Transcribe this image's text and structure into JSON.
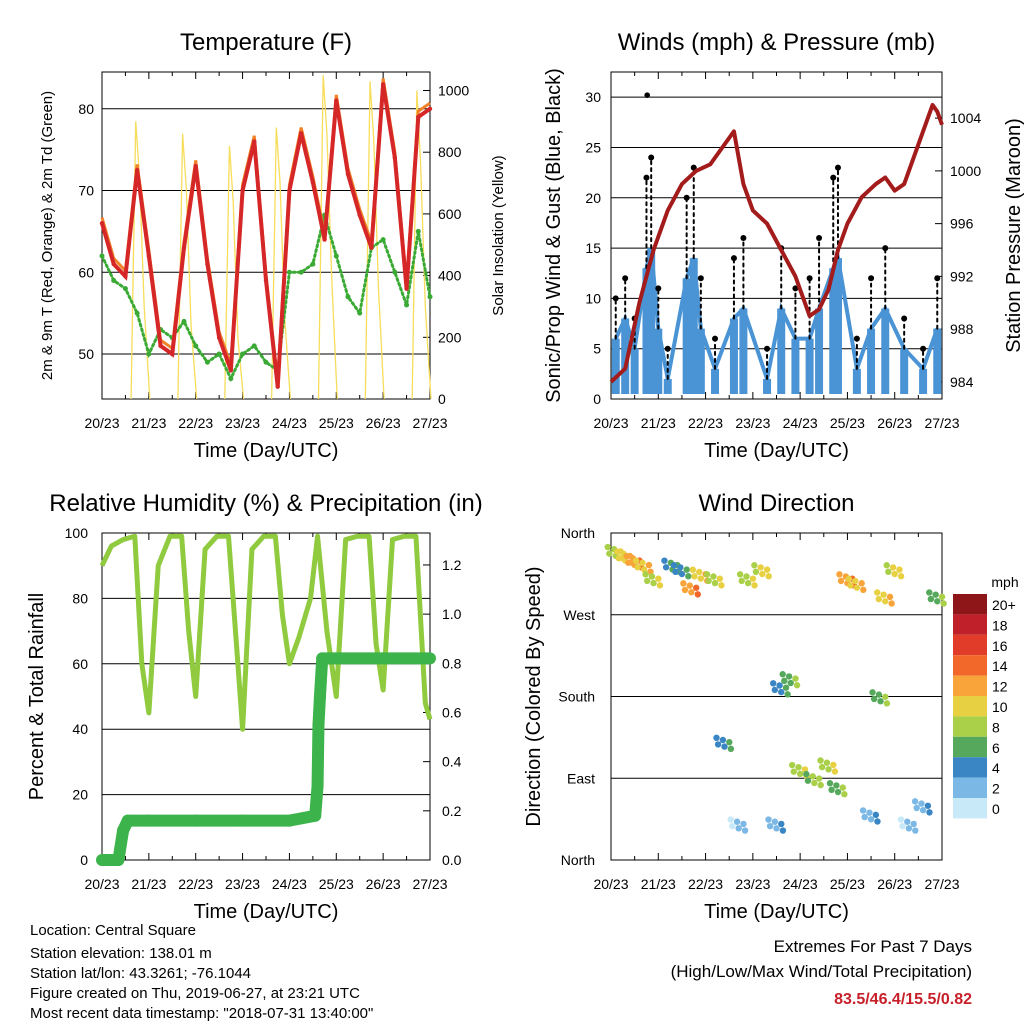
{
  "colors": {
    "t2m": "#d62728",
    "t9m": "#f0822a",
    "td": "#3aaa35",
    "solar": "#f7dd5a",
    "wind": "#4a94d6",
    "gust": "#000000",
    "pressure": "#a31b1b",
    "rh": "#8fca3f",
    "rain": "#3cb44b"
  },
  "info": {
    "location": "Location: Central Square",
    "elevation": "Station elevation: 138.01 m",
    "latlon": "Station lat/lon: 43.3261; -76.1044",
    "created": "Figure created on Thu, 2019-06-27, at 23:21 UTC",
    "recent": "Most recent data timestamp: \"2018-07-31 13:40:00\""
  },
  "extremes": {
    "heading": "Extremes For Past 7 Days",
    "subheading": "(High/Low/Max Wind/Total Precipitation)",
    "values": "83.5/46.4/15.5/0.82"
  },
  "chart_data": [
    {
      "type": "line",
      "title": "Temperature (F)",
      "xlabel": "Time (Day/UTC)",
      "ylabel": "2m & 9m T (Red, Orange) & 2m Td (Green)",
      "ylabel_right": "Solar Insolation (Yellow)",
      "x_ticks": [
        "20/23",
        "21/23",
        "22/23",
        "23/23",
        "24/23",
        "25/23",
        "26/23",
        "27/23"
      ],
      "ylim": [
        44.5,
        84.5
      ],
      "y_ticks": [
        50,
        60,
        70,
        80
      ],
      "ylim_right": [
        0,
        1060
      ],
      "y_ticks_right": [
        0,
        200,
        400,
        600,
        800,
        1000
      ],
      "grid": true,
      "series": [
        {
          "name": "2m T",
          "x": [
            0,
            0.25,
            0.5,
            0.75,
            1,
            1.25,
            1.5,
            1.75,
            2,
            2.25,
            2.5,
            2.75,
            3,
            3.25,
            3.5,
            3.75,
            4,
            4.25,
            4.5,
            4.75,
            5,
            5.25,
            5.5,
            5.75,
            6,
            6.25,
            6.5,
            6.75,
            7
          ],
          "values": [
            66,
            61,
            59.5,
            72.5,
            62,
            51,
            50,
            63,
            73,
            61,
            52,
            48,
            70,
            76,
            59,
            46,
            70,
            77,
            71,
            64,
            81,
            72,
            67,
            63,
            83,
            74,
            58,
            79,
            80
          ]
        },
        {
          "name": "2m Td",
          "x": [
            0,
            0.25,
            0.5,
            0.75,
            1,
            1.25,
            1.5,
            1.75,
            2,
            2.25,
            2.5,
            2.75,
            3,
            3.25,
            3.5,
            3.75,
            4,
            4.25,
            4.5,
            4.75,
            5,
            5.25,
            5.5,
            5.75,
            6,
            6.25,
            6.5,
            6.75,
            7
          ],
          "values": [
            62,
            59,
            58,
            55,
            50,
            53,
            52,
            54,
            51,
            49,
            50,
            47,
            50,
            51,
            49,
            48,
            60,
            60,
            61,
            67,
            62,
            57,
            55,
            63,
            64,
            60,
            56,
            65,
            57
          ]
        },
        {
          "name": "Solar Insolation",
          "x": [
            0.72,
            0.8,
            0.9,
            1.72,
            1.8,
            1.9,
            2.72,
            2.8,
            2.9,
            3.72,
            3.8,
            3.9,
            4.72,
            4.8,
            4.9,
            5.72,
            5.8,
            5.9,
            6.72,
            6.8,
            6.9
          ],
          "values": [
            900,
            720,
            300,
            860,
            680,
            240,
            820,
            640,
            200,
            880,
            700,
            260,
            1050,
            860,
            400,
            1030,
            840,
            360,
            1000,
            760,
            300
          ]
        }
      ]
    },
    {
      "type": "scatter",
      "title": "Winds (mph) & Pressure (mb)",
      "xlabel": "Time (Day/UTC)",
      "ylabel": "Sonic/Prop Wind & Gust (Blue, Black)",
      "ylabel_right": "Station Pressure (Maroon)",
      "x_ticks": [
        "20/23",
        "21/23",
        "22/23",
        "23/23",
        "24/23",
        "25/23",
        "26/23",
        "27/23"
      ],
      "ylim": [
        0,
        32.5
      ],
      "y_ticks": [
        0,
        5,
        10,
        15,
        20,
        25,
        30
      ],
      "ylim_right": [
        982.7,
        1007.5
      ],
      "y_ticks_right": [
        984,
        988,
        992,
        996,
        1000,
        1004
      ],
      "grid": true,
      "series": [
        {
          "name": "Gust",
          "x": [
            0.1,
            0.3,
            0.5,
            0.75,
            0.85,
            1,
            1.2,
            1.6,
            1.75,
            1.9,
            2.2,
            2.6,
            2.8,
            3.3,
            3.6,
            3.9,
            4.2,
            4.4,
            4.7,
            4.8,
            5.2,
            5.5,
            5.8,
            6.2,
            6.6,
            6.9
          ],
          "values": [
            10,
            12,
            8,
            22,
            24,
            11,
            5,
            20,
            23,
            12,
            6,
            14,
            16,
            5,
            15,
            11,
            12,
            16,
            22,
            23,
            6,
            12,
            15,
            8,
            5,
            12
          ]
        },
        {
          "name": "Wind",
          "x": [
            0.1,
            0.3,
            0.5,
            0.75,
            0.85,
            1,
            1.2,
            1.6,
            1.75,
            1.9,
            2.2,
            2.6,
            2.8,
            3.3,
            3.6,
            3.9,
            4.2,
            4.4,
            4.7,
            4.8,
            5.2,
            5.5,
            5.8,
            6.2,
            6.6,
            6.9
          ],
          "values": [
            6,
            8,
            5,
            13,
            15,
            7,
            2,
            12,
            14,
            7,
            3,
            8,
            9,
            2,
            9,
            6,
            6,
            9,
            13,
            14,
            3,
            7,
            9,
            5,
            3,
            7
          ]
        },
        {
          "name": "Station Pressure",
          "x": [
            0,
            0.3,
            0.6,
            0.9,
            1.2,
            1.5,
            1.8,
            2.1,
            2.4,
            2.6,
            2.8,
            3,
            3.3,
            3.6,
            3.9,
            4.2,
            4.4,
            4.6,
            4.8,
            5,
            5.3,
            5.6,
            5.8,
            6,
            6.2,
            6.4,
            6.6,
            6.8,
            6.9,
            7
          ],
          "values": [
            984,
            985,
            990,
            994,
            997,
            999,
            1000,
            1000.5,
            1002,
            1003,
            999,
            997,
            996,
            994,
            992,
            989,
            989.5,
            991,
            994,
            996,
            998,
            999,
            999.5,
            998.5,
            999,
            1001,
            1003,
            1005,
            1004.5,
            1003.5
          ]
        }
      ]
    },
    {
      "type": "line",
      "title": "Relative Humidity (%) & Precipitation (in)",
      "xlabel": "Time (Day/UTC)",
      "ylabel": "Percent & Total Rainfall",
      "x_ticks": [
        "20/23",
        "21/23",
        "22/23",
        "23/23",
        "24/23",
        "25/23",
        "26/23",
        "27/23"
      ],
      "ylim": [
        0,
        100
      ],
      "y_ticks": [
        0,
        20,
        40,
        60,
        80,
        100
      ],
      "ylim_right": [
        0,
        1.33
      ],
      "y_ticks_right": [
        "0.0",
        "0.2",
        "0.4",
        "0.6",
        "0.8",
        "1.0",
        "1.2"
      ],
      "grid": true,
      "series": [
        {
          "name": "Relative Humidity",
          "x": [
            0,
            0.2,
            0.45,
            0.7,
            0.85,
            1,
            1.2,
            1.45,
            1.7,
            1.85,
            2,
            2.2,
            2.45,
            2.7,
            2.9,
            3,
            3.2,
            3.45,
            3.7,
            3.85,
            4,
            4.2,
            4.45,
            4.6,
            4.8,
            5,
            5.2,
            5.45,
            5.7,
            5.85,
            6,
            6.2,
            6.45,
            6.7,
            6.9,
            7
          ],
          "values": [
            90,
            96,
            98,
            99,
            60,
            45,
            90,
            99,
            99,
            70,
            50,
            95,
            99,
            99,
            60,
            40,
            95,
            99,
            99,
            75,
            60,
            68,
            80,
            99,
            70,
            50,
            98,
            99,
            99,
            66,
            52,
            98,
            99,
            99,
            48,
            43
          ]
        },
        {
          "name": "Total Precipitation",
          "x": [
            0,
            0.35,
            0.45,
            0.55,
            1,
            2,
            3,
            4,
            4.55,
            4.6,
            4.62,
            4.65,
            4.7,
            5,
            6,
            7
          ],
          "values": [
            0,
            0,
            0.12,
            0.16,
            0.16,
            0.16,
            0.16,
            0.16,
            0.18,
            0.3,
            0.55,
            0.66,
            0.82,
            0.82,
            0.82,
            0.82
          ]
        }
      ]
    },
    {
      "type": "scatter",
      "title": "Wind Direction",
      "xlabel": "Time (Day/UTC)",
      "ylabel": "Direction (Colored By Speed)",
      "x_ticks": [
        "20/23",
        "21/23",
        "22/23",
        "23/23",
        "24/23",
        "25/23",
        "26/23",
        "27/23"
      ],
      "y_ticks": [
        "North",
        "West",
        "South",
        "East",
        "North"
      ],
      "ylim": [
        0,
        360
      ],
      "grid": true,
      "legend_title": "mph",
      "legend_labels": [
        "20+",
        "18",
        "16",
        "14",
        "12",
        "10",
        "8",
        "6",
        "4",
        "2",
        "0"
      ],
      "legend_colors": [
        "#8e1518",
        "#c0202a",
        "#e13b2a",
        "#f2682b",
        "#f8a43b",
        "#e8d043",
        "#aad04a",
        "#55a85c",
        "#3a85c4",
        "#7bb8e5",
        "#c8e9f8"
      ],
      "legend_placement": "right",
      "series": [
        {
          "name": "Direction",
          "x": [
            0.1,
            0.3,
            0.5,
            0.7,
            0.9,
            1.3,
            1.5,
            1.7,
            1.9,
            2.2,
            2.4,
            2.7,
            2.9,
            3.2,
            3.5,
            3.6,
            3.8,
            4,
            4.3,
            4.6,
            4.8,
            5,
            5.2,
            5.5,
            5.7,
            5.8,
            6,
            6.3,
            6.6,
            6.9
          ],
          "values": [
            330,
            325,
            320,
            315,
            300,
            315,
            310,
            290,
            305,
            300,
            120,
            30,
            300,
            310,
            30,
            180,
            190,
            90,
            80,
            95,
            70,
            300,
            295,
            40,
            170,
            280,
            310,
            30,
            50,
            280
          ],
          "speeds": [
            8,
            10,
            12,
            10,
            8,
            5,
            4,
            12,
            10,
            8,
            4,
            1,
            8,
            9,
            2,
            4,
            6,
            8,
            7,
            8,
            6,
            12,
            10,
            2,
            6,
            10,
            9,
            1,
            2,
            6
          ]
        }
      ]
    }
  ]
}
